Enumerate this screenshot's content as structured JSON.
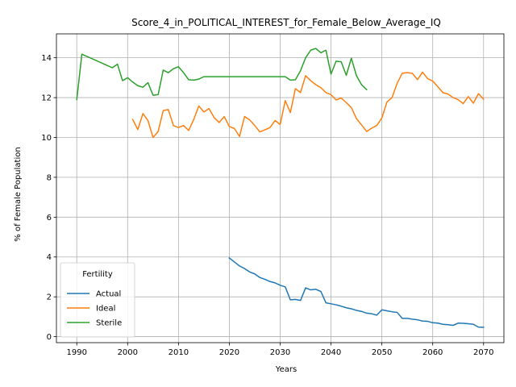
{
  "chart_data": {
    "type": "line",
    "title": "Score_4_in_POLITICAL_INTEREST_for_Female_Below_Average_IQ",
    "xlabel": "Years",
    "ylabel": "% of Female Population",
    "xlim": [
      1986,
      2074
    ],
    "ylim": [
      -0.3,
      15.2
    ],
    "xticks": [
      1990,
      2000,
      2010,
      2020,
      2030,
      2040,
      2050,
      2060,
      2070
    ],
    "yticks": [
      0,
      2,
      4,
      6,
      8,
      10,
      12,
      14
    ],
    "grid": true,
    "legend": {
      "title": "Fertility",
      "placement": "lower-left"
    },
    "series": [
      {
        "name": "Actual",
        "color": "#1f77b4",
        "points": [
          [
            2020,
            3.95
          ],
          [
            2021,
            3.75
          ],
          [
            2022,
            3.55
          ],
          [
            2023,
            3.42
          ],
          [
            2024,
            3.25
          ],
          [
            2025,
            3.15
          ],
          [
            2026,
            2.97
          ],
          [
            2027,
            2.88
          ],
          [
            2028,
            2.77
          ],
          [
            2029,
            2.7
          ],
          [
            2030,
            2.58
          ],
          [
            2031,
            2.5
          ],
          [
            2032,
            1.85
          ],
          [
            2033,
            1.87
          ],
          [
            2034,
            1.82
          ],
          [
            2035,
            2.45
          ],
          [
            2036,
            2.35
          ],
          [
            2037,
            2.38
          ],
          [
            2038,
            2.27
          ],
          [
            2039,
            1.7
          ],
          [
            2040,
            1.65
          ],
          [
            2041,
            1.6
          ],
          [
            2042,
            1.53
          ],
          [
            2043,
            1.45
          ],
          [
            2044,
            1.4
          ],
          [
            2045,
            1.32
          ],
          [
            2046,
            1.27
          ],
          [
            2047,
            1.18
          ],
          [
            2048,
            1.15
          ],
          [
            2049,
            1.08
          ],
          [
            2050,
            1.35
          ],
          [
            2051,
            1.3
          ],
          [
            2052,
            1.25
          ],
          [
            2053,
            1.22
          ],
          [
            2054,
            0.92
          ],
          [
            2055,
            0.92
          ],
          [
            2056,
            0.88
          ],
          [
            2057,
            0.85
          ],
          [
            2058,
            0.78
          ],
          [
            2059,
            0.77
          ],
          [
            2060,
            0.7
          ],
          [
            2061,
            0.68
          ],
          [
            2062,
            0.62
          ],
          [
            2063,
            0.6
          ],
          [
            2064,
            0.57
          ],
          [
            2065,
            0.68
          ],
          [
            2066,
            0.67
          ],
          [
            2067,
            0.65
          ],
          [
            2068,
            0.62
          ],
          [
            2069,
            0.48
          ],
          [
            2070,
            0.47
          ]
        ]
      },
      {
        "name": "Ideal",
        "color": "#ff7f0e",
        "points": [
          [
            2001,
            10.9
          ],
          [
            2002,
            10.4
          ],
          [
            2003,
            11.2
          ],
          [
            2004,
            10.85
          ],
          [
            2005,
            10.0
          ],
          [
            2006,
            10.3
          ],
          [
            2007,
            11.35
          ],
          [
            2008,
            11.4
          ],
          [
            2009,
            10.6
          ],
          [
            2010,
            10.5
          ],
          [
            2011,
            10.6
          ],
          [
            2012,
            10.35
          ],
          [
            2013,
            10.9
          ],
          [
            2014,
            11.58
          ],
          [
            2015,
            11.28
          ],
          [
            2016,
            11.45
          ],
          [
            2017,
            11.0
          ],
          [
            2018,
            10.75
          ],
          [
            2019,
            11.05
          ],
          [
            2020,
            10.55
          ],
          [
            2021,
            10.45
          ],
          [
            2022,
            10.05
          ],
          [
            2023,
            11.05
          ],
          [
            2024,
            10.88
          ],
          [
            2025,
            10.6
          ],
          [
            2026,
            10.28
          ],
          [
            2027,
            10.38
          ],
          [
            2028,
            10.5
          ],
          [
            2029,
            10.85
          ],
          [
            2030,
            10.65
          ],
          [
            2031,
            11.85
          ],
          [
            2032,
            11.25
          ],
          [
            2033,
            12.45
          ],
          [
            2034,
            12.25
          ],
          [
            2035,
            13.1
          ],
          [
            2036,
            12.85
          ],
          [
            2037,
            12.65
          ],
          [
            2038,
            12.5
          ],
          [
            2039,
            12.25
          ],
          [
            2040,
            12.15
          ],
          [
            2041,
            11.88
          ],
          [
            2042,
            11.98
          ],
          [
            2043,
            11.75
          ],
          [
            2044,
            11.5
          ],
          [
            2045,
            10.95
          ],
          [
            2046,
            10.63
          ],
          [
            2047,
            10.3
          ],
          [
            2048,
            10.47
          ],
          [
            2049,
            10.6
          ],
          [
            2050,
            10.98
          ],
          [
            2051,
            11.78
          ],
          [
            2052,
            12.0
          ],
          [
            2053,
            12.72
          ],
          [
            2054,
            13.22
          ],
          [
            2055,
            13.25
          ],
          [
            2056,
            13.22
          ],
          [
            2057,
            12.9
          ],
          [
            2058,
            13.28
          ],
          [
            2059,
            12.95
          ],
          [
            2060,
            12.83
          ],
          [
            2061,
            12.55
          ],
          [
            2062,
            12.25
          ],
          [
            2063,
            12.18
          ],
          [
            2064,
            12.0
          ],
          [
            2065,
            11.9
          ],
          [
            2066,
            11.7
          ],
          [
            2067,
            12.05
          ],
          [
            2068,
            11.72
          ],
          [
            2069,
            12.2
          ],
          [
            2070,
            11.92
          ]
        ]
      },
      {
        "name": "Sterile",
        "color": "#2ca02c",
        "points": [
          [
            1990,
            11.9
          ],
          [
            1991,
            14.18
          ],
          [
            1997,
            13.5
          ],
          [
            1998,
            13.68
          ],
          [
            1999,
            12.85
          ],
          [
            2000,
            13.0
          ],
          [
            2001,
            12.78
          ],
          [
            2002,
            12.6
          ],
          [
            2003,
            12.52
          ],
          [
            2004,
            12.75
          ],
          [
            2005,
            12.12
          ],
          [
            2006,
            12.15
          ],
          [
            2007,
            13.38
          ],
          [
            2008,
            13.25
          ],
          [
            2009,
            13.45
          ],
          [
            2010,
            13.55
          ],
          [
            2011,
            13.25
          ],
          [
            2012,
            12.9
          ],
          [
            2013,
            12.88
          ],
          [
            2014,
            12.93
          ],
          [
            2015,
            13.05
          ],
          [
            2016,
            13.05
          ],
          [
            2017,
            13.05
          ],
          [
            2018,
            13.05
          ],
          [
            2019,
            13.05
          ],
          [
            2020,
            13.05
          ],
          [
            2021,
            13.05
          ],
          [
            2022,
            13.05
          ],
          [
            2023,
            13.05
          ],
          [
            2024,
            13.05
          ],
          [
            2025,
            13.05
          ],
          [
            2026,
            13.05
          ],
          [
            2027,
            13.05
          ],
          [
            2028,
            13.05
          ],
          [
            2029,
            13.05
          ],
          [
            2030,
            13.05
          ],
          [
            2031,
            13.05
          ],
          [
            2032,
            12.88
          ],
          [
            2033,
            12.9
          ],
          [
            2034,
            13.35
          ],
          [
            2035,
            14.0
          ],
          [
            2036,
            14.38
          ],
          [
            2037,
            14.47
          ],
          [
            2038,
            14.25
          ],
          [
            2039,
            14.38
          ],
          [
            2040,
            13.18
          ],
          [
            2041,
            13.83
          ],
          [
            2042,
            13.8
          ],
          [
            2043,
            13.12
          ],
          [
            2044,
            13.98
          ],
          [
            2045,
            13.1
          ],
          [
            2046,
            12.65
          ],
          [
            2047,
            12.4
          ]
        ]
      }
    ]
  }
}
